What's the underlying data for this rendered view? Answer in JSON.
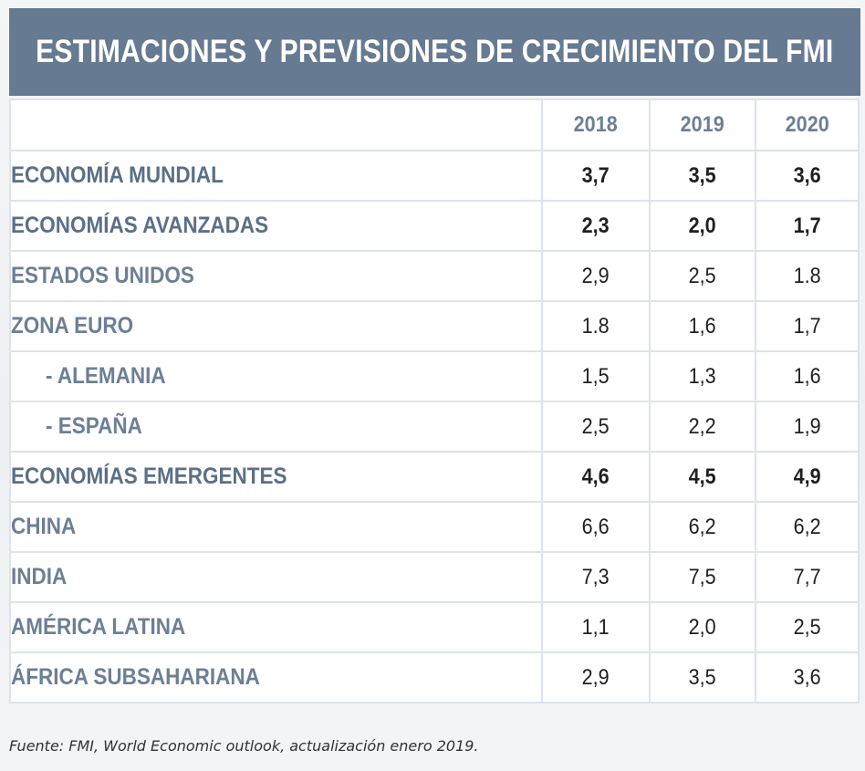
{
  "title": "ESTIMACIONES Y PREVISIONES DE CRECIMIENTO DEL FMI",
  "source": "Fuente: FMI, World Economic outlook, actualización enero 2019.",
  "colors": {
    "header_bg": "#667a91",
    "label_text": "#6c7f95",
    "value_text": "#1f1f1f",
    "grid": "#dde3ea"
  },
  "chart_data": {
    "type": "table",
    "title": "ESTIMACIONES Y PREVISIONES DE CRECIMIENTO DEL FMI",
    "columns": [
      "",
      "2018",
      "2019",
      "2020"
    ],
    "rows": [
      {
        "label": "ECONOMÍA MUNDIAL",
        "values": [
          "3,7",
          "3,5",
          "3,6"
        ],
        "bold": true,
        "indent": false
      },
      {
        "label": "ECONOMÍAS AVANZADAS",
        "values": [
          "2,3",
          "2,0",
          "1,7"
        ],
        "bold": true,
        "indent": false
      },
      {
        "label": "ESTADOS UNIDOS",
        "values": [
          "2,9",
          "2,5",
          "1.8"
        ],
        "bold": false,
        "indent": false
      },
      {
        "label": "ZONA EURO",
        "values": [
          "1.8",
          "1,6",
          "1,7"
        ],
        "bold": false,
        "indent": false
      },
      {
        "label": "- ALEMANIA",
        "values": [
          "1,5",
          "1,3",
          "1,6"
        ],
        "bold": false,
        "indent": true
      },
      {
        "label": "- ESPAÑA",
        "values": [
          "2,5",
          "2,2",
          "1,9"
        ],
        "bold": false,
        "indent": true
      },
      {
        "label": "ECONOMÍAS EMERGENTES",
        "values": [
          "4,6",
          "4,5",
          "4,9"
        ],
        "bold": true,
        "indent": false
      },
      {
        "label": "CHINA",
        "values": [
          "6,6",
          "6,2",
          "6,2"
        ],
        "bold": false,
        "indent": false
      },
      {
        "label": "INDIA",
        "values": [
          "7,3",
          "7,5",
          "7,7"
        ],
        "bold": false,
        "indent": false
      },
      {
        "label": "AMÉRICA LATINA",
        "values": [
          "1,1",
          "2,0",
          "2,5"
        ],
        "bold": false,
        "indent": false
      },
      {
        "label": "ÁFRICA SUBSAHARIANA",
        "values": [
          "2,9",
          "3,5",
          "3,6"
        ],
        "bold": false,
        "indent": false
      }
    ]
  }
}
